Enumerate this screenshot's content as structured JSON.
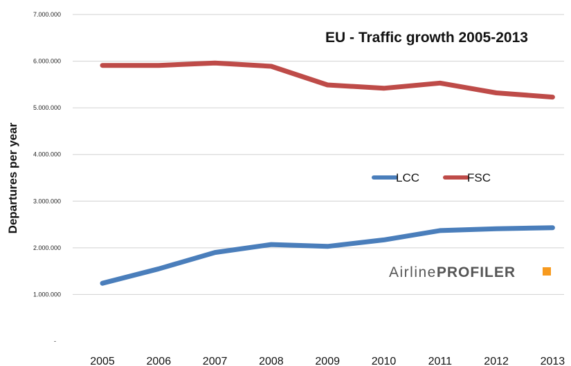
{
  "chart_data": {
    "type": "line",
    "title": "EU - Traffic growth 2005-2013",
    "ylabel": "Departures per year",
    "xlabel": "",
    "categories": [
      "2005",
      "2006",
      "2007",
      "2008",
      "2009",
      "2010",
      "2011",
      "2012",
      "2013"
    ],
    "y_ticks": [
      "7.000.000",
      "6.000.000",
      "5.000.000",
      "4.000.000",
      "3.000.000",
      "2.000.000",
      "1.000.000",
      "-"
    ],
    "ylim": [
      0,
      7000000
    ],
    "grid": true,
    "legend_position": "center-right",
    "series": [
      {
        "name": "LCC",
        "color": "#4a7ebb",
        "values": [
          1240000,
          1550000,
          1900000,
          2070000,
          2030000,
          2170000,
          2370000,
          2410000,
          2430000
        ]
      },
      {
        "name": "FSC",
        "color": "#be4b48",
        "values": [
          5910000,
          5910000,
          5960000,
          5890000,
          5490000,
          5420000,
          5530000,
          5320000,
          5230000
        ]
      }
    ],
    "watermark": {
      "part1": "Airline",
      "part2": "PROFILER",
      "accent": "#f79a1e"
    }
  }
}
